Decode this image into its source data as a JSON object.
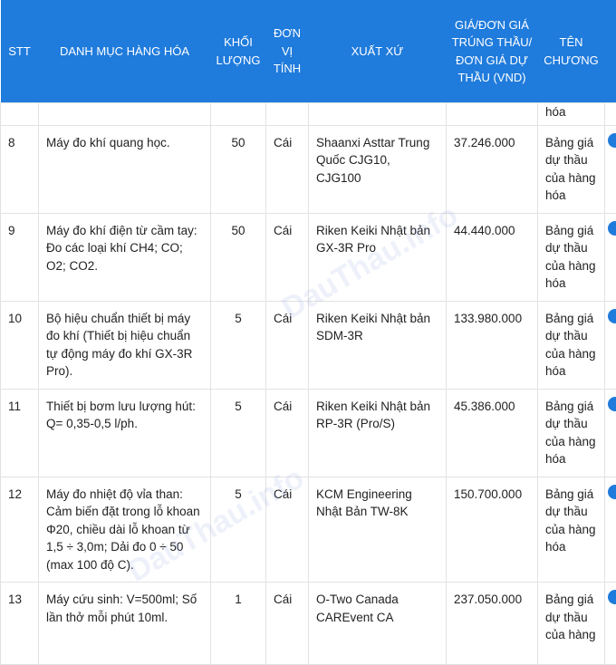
{
  "headers": [
    "STT",
    "DANH MỤC HÀNG HÓA",
    "KHỐI LƯỢNG",
    "ĐƠN VỊ TÍNH",
    "XUẤT XỨ",
    "GIÁ/ĐƠN GIÁ TRÚNG THẦU/ĐƠN GIÁ DỰ THẦU (VND)",
    "TÊN CHƯƠNG"
  ],
  "partial_row": {
    "chapter": "hóa"
  },
  "rows": [
    {
      "stt": "8",
      "name": "Máy đo khí quang học.",
      "qty": "50",
      "unit": "Cái",
      "origin": "Shaanxi Asttar Trung Quốc CJG10, CJG100",
      "price": "37.246.000",
      "chapter": "Bảng giá dự thầu của hàng hóa"
    },
    {
      "stt": "9",
      "name": "Máy đo khí điện từ cầm tay: Đo các loại khí CH4; CO; O2; CO2.",
      "qty": "50",
      "unit": "Cái",
      "origin": "Riken Keiki Nhật bản GX-3R Pro",
      "price": "44.440.000",
      "chapter": "Bảng giá dự thầu của hàng hóa"
    },
    {
      "stt": "10",
      "name": "Bộ hiệu chuẩn thiết bị máy đo khí (Thiết bị hiệu chuẩn tự động máy đo khí GX-3R Pro).",
      "qty": "5",
      "unit": "Cái",
      "origin": "Riken Keiki Nhật bản SDM-3R",
      "price": "133.980.000",
      "chapter": "Bảng giá dự thầu của hàng hóa"
    },
    {
      "stt": "11",
      "name": "Thiết bị bơm lưu lượng hút: Q= 0,35-0,5 l/ph.",
      "qty": "5",
      "unit": "Cái",
      "origin": "Riken Keiki Nhật bản RP-3R (Pro/S)",
      "price": "45.386.000",
      "chapter": "Bảng giá dự thầu của hàng hóa"
    },
    {
      "stt": "12",
      "name": "Máy đo nhiệt độ vỉa than: Cảm biến đặt trong lỗ khoan Φ20, chiều dài lỗ khoan từ 1,5 ÷ 3,0m; Dải đo 0 ÷ 50 (max 100 độ C).",
      "qty": "5",
      "unit": "Cái",
      "origin": "KCM Engineering Nhật Bản TW-8K",
      "price": "150.700.000",
      "chapter": "Bảng giá dự thầu của hàng hóa"
    },
    {
      "stt": "13",
      "name": "Máy cứu sinh: V=500ml; Số lần thở mỗi phút 10ml.",
      "qty": "1",
      "unit": "Cái",
      "origin": "O-Two Canada CAREvent CA",
      "price": "237.050.000",
      "chapter": "Bảng giá dự thầu của hàng"
    }
  ],
  "watermark": "DauThau.info",
  "colors": {
    "header_bg": "#1f7bdc"
  }
}
